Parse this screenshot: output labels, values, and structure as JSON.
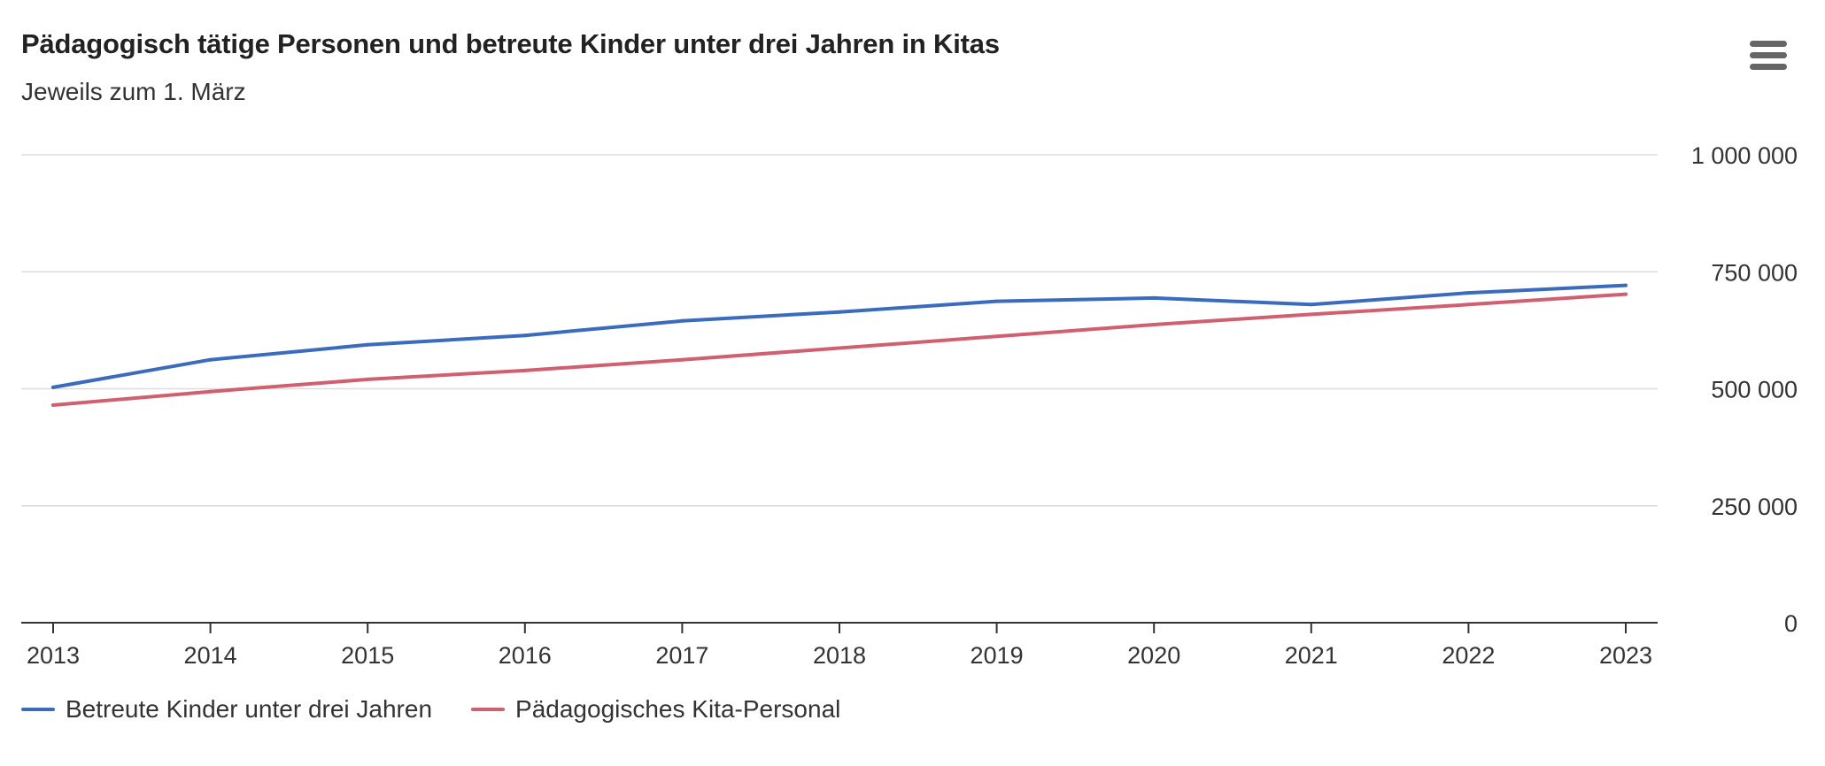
{
  "header": {
    "title": "Pädagogisch tätige Personen und betreute Kinder unter drei Jahren in Kitas",
    "subtitle": "Jeweils zum 1. März"
  },
  "menu": {
    "icon": "hamburger-menu-icon"
  },
  "chart_data": {
    "type": "line",
    "title": "Pädagogisch tätige Personen und betreute Kinder unter drei Jahren in Kitas",
    "subtitle": "Jeweils zum 1. März",
    "xlabel": "",
    "ylabel": "",
    "x": [
      "2013",
      "2014",
      "2015",
      "2016",
      "2017",
      "2018",
      "2019",
      "2020",
      "2021",
      "2022",
      "2023"
    ],
    "ylim": [
      0,
      1000000
    ],
    "yticks": [
      0,
      250000,
      500000,
      750000,
      1000000
    ],
    "ytick_labels": [
      "0",
      "250 000",
      "500 000",
      "750 000",
      "1 000 000"
    ],
    "y_axis_position": "right",
    "grid": true,
    "legend_position": "bottom-left",
    "series": [
      {
        "name": "Betreute Kinder unter drei Jahren",
        "color": "#3b6bbd",
        "values": [
          503000,
          562000,
          594000,
          614000,
          645000,
          664000,
          687000,
          694000,
          680000,
          705000,
          721000
        ]
      },
      {
        "name": "Pädagogisches Kita-Personal",
        "color": "#d0606f",
        "values": [
          465000,
          494000,
          520000,
          539000,
          562000,
          587000,
          612000,
          637000,
          659000,
          680000,
          702000
        ]
      }
    ]
  }
}
